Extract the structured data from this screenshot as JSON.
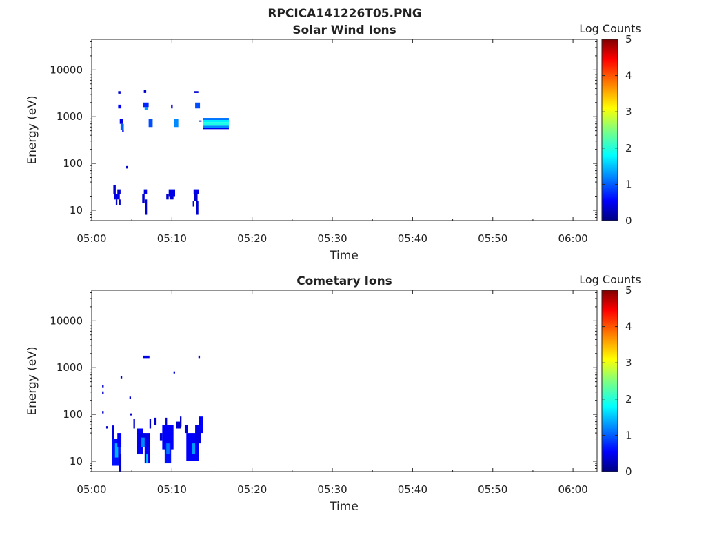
{
  "page_title": "RPCICA141226T05.PNG",
  "chart_data": [
    {
      "type": "heatmap",
      "title": "Solar Wind Ions",
      "xlabel": "Time",
      "ylabel": "Energy (eV)",
      "x_ticks": [
        "05:00",
        "05:10",
        "05:20",
        "05:30",
        "05:40",
        "05:50",
        "06:00"
      ],
      "xlim_minutes": [
        0,
        63
      ],
      "y_ticks": [
        "10",
        "100",
        "1000",
        "10000"
      ],
      "y_tick_values": [
        10,
        100,
        1000,
        10000
      ],
      "ylim": [
        6,
        45000
      ],
      "y_scale": "log",
      "colorbar_label": "Log Counts",
      "colorbar_ticks": [
        "0",
        "1",
        "2",
        "3",
        "4",
        "5"
      ],
      "colorbar_range": [
        0,
        5
      ],
      "colormap": "jet",
      "cells": [
        {
          "t0": 3.3,
          "t1": 3.6,
          "e0": 3100,
          "e1": 3500,
          "v": 0.4
        },
        {
          "t0": 3.3,
          "t1": 3.7,
          "e0": 1500,
          "e1": 1800,
          "v": 0.6
        },
        {
          "t0": 3.5,
          "t1": 3.9,
          "e0": 700,
          "e1": 900,
          "v": 0.5
        },
        {
          "t0": 3.6,
          "t1": 4.0,
          "e0": 520,
          "e1": 700,
          "v": 1.1
        },
        {
          "t0": 3.8,
          "t1": 4.0,
          "e0": 470,
          "e1": 520,
          "v": 0.5
        },
        {
          "t0": 4.3,
          "t1": 4.5,
          "e0": 78,
          "e1": 88,
          "v": 0.4
        },
        {
          "t0": 6.5,
          "t1": 6.8,
          "e0": 3200,
          "e1": 3700,
          "v": 0.4
        },
        {
          "t0": 6.4,
          "t1": 7.1,
          "e0": 1600,
          "e1": 2000,
          "v": 0.8
        },
        {
          "t0": 6.6,
          "t1": 7.0,
          "e0": 1400,
          "e1": 1600,
          "v": 1.4
        },
        {
          "t0": 7.1,
          "t1": 7.6,
          "e0": 600,
          "e1": 900,
          "v": 1.0
        },
        {
          "t0": 9.9,
          "t1": 10.1,
          "e0": 1500,
          "e1": 1800,
          "v": 0.4
        },
        {
          "t0": 10.3,
          "t1": 10.8,
          "e0": 600,
          "e1": 900,
          "v": 1.3
        },
        {
          "t0": 12.8,
          "t1": 13.3,
          "e0": 3200,
          "e1": 3500,
          "v": 0.4
        },
        {
          "t0": 12.9,
          "t1": 13.5,
          "e0": 1500,
          "e1": 2000,
          "v": 1.0
        },
        {
          "t0": 13.4,
          "t1": 13.7,
          "e0": 780,
          "e1": 830,
          "v": 0.4
        },
        {
          "t0": 13.9,
          "t1": 17.1,
          "e0": 850,
          "e1": 940,
          "v": 1.2
        },
        {
          "t0": 13.9,
          "t1": 17.1,
          "e0": 760,
          "e1": 850,
          "v": 1.8
        },
        {
          "t0": 13.9,
          "t1": 17.1,
          "e0": 640,
          "e1": 760,
          "v": 2.0
        },
        {
          "t0": 13.9,
          "t1": 17.1,
          "e0": 570,
          "e1": 640,
          "v": 1.3
        },
        {
          "t0": 13.9,
          "t1": 17.1,
          "e0": 540,
          "e1": 570,
          "v": 0.5
        },
        {
          "t0": 2.7,
          "t1": 3.0,
          "e0": 22,
          "e1": 34,
          "v": 0.4
        },
        {
          "t0": 2.8,
          "t1": 3.5,
          "e0": 17,
          "e1": 22,
          "v": 0.5
        },
        {
          "t0": 3.2,
          "t1": 3.6,
          "e0": 22,
          "e1": 28,
          "v": 0.4
        },
        {
          "t0": 3.0,
          "t1": 3.2,
          "e0": 13,
          "e1": 17,
          "v": 0.4
        },
        {
          "t0": 3.4,
          "t1": 3.6,
          "e0": 13,
          "e1": 17,
          "v": 0.4
        },
        {
          "t0": 6.5,
          "t1": 6.9,
          "e0": 22,
          "e1": 28,
          "v": 0.5
        },
        {
          "t0": 6.3,
          "t1": 6.6,
          "e0": 14,
          "e1": 22,
          "v": 0.4
        },
        {
          "t0": 6.7,
          "t1": 6.9,
          "e0": 8,
          "e1": 17,
          "v": 0.4
        },
        {
          "t0": 9.3,
          "t1": 9.6,
          "e0": 17,
          "e1": 22,
          "v": 0.4
        },
        {
          "t0": 9.6,
          "t1": 10.4,
          "e0": 20,
          "e1": 28,
          "v": 0.5
        },
        {
          "t0": 9.7,
          "t1": 10.2,
          "e0": 17,
          "e1": 20,
          "v": 0.4
        },
        {
          "t0": 12.7,
          "t1": 13.4,
          "e0": 22,
          "e1": 28,
          "v": 0.5
        },
        {
          "t0": 12.8,
          "t1": 13.2,
          "e0": 16,
          "e1": 22,
          "v": 0.4
        },
        {
          "t0": 12.6,
          "t1": 12.8,
          "e0": 12,
          "e1": 16,
          "v": 0.4
        },
        {
          "t0": 13.0,
          "t1": 13.3,
          "e0": 8,
          "e1": 16,
          "v": 0.4
        }
      ]
    },
    {
      "type": "heatmap",
      "title": "Cometary Ions",
      "xlabel": "Time",
      "ylabel": "Energy (eV)",
      "x_ticks": [
        "05:00",
        "05:10",
        "05:20",
        "05:30",
        "05:40",
        "05:50",
        "06:00"
      ],
      "xlim_minutes": [
        0,
        63
      ],
      "y_ticks": [
        "10",
        "100",
        "1000",
        "10000"
      ],
      "y_tick_values": [
        10,
        100,
        1000,
        10000
      ],
      "ylim": [
        6,
        45000
      ],
      "y_scale": "log",
      "colorbar_label": "Log Counts",
      "colorbar_ticks": [
        "0",
        "1",
        "2",
        "3",
        "4",
        "5"
      ],
      "colorbar_range": [
        0,
        5
      ],
      "colormap": "jet",
      "cells": [
        {
          "t0": 1.3,
          "t1": 1.5,
          "e0": 380,
          "e1": 430,
          "v": 0.4
        },
        {
          "t0": 1.3,
          "t1": 1.5,
          "e0": 270,
          "e1": 310,
          "v": 0.4
        },
        {
          "t0": 1.3,
          "t1": 1.5,
          "e0": 105,
          "e1": 118,
          "v": 0.4
        },
        {
          "t0": 1.8,
          "t1": 2.0,
          "e0": 50,
          "e1": 56,
          "v": 0.4
        },
        {
          "t0": 3.6,
          "t1": 3.8,
          "e0": 590,
          "e1": 650,
          "v": 0.4
        },
        {
          "t0": 4.7,
          "t1": 4.9,
          "e0": 215,
          "e1": 240,
          "v": 0.4
        },
        {
          "t0": 4.8,
          "t1": 5.0,
          "e0": 95,
          "e1": 105,
          "v": 0.4
        },
        {
          "t0": 2.5,
          "t1": 2.8,
          "e0": 30,
          "e1": 58,
          "v": 0.5
        },
        {
          "t0": 2.5,
          "t1": 3.6,
          "e0": 8,
          "e1": 30,
          "v": 0.7
        },
        {
          "t0": 2.9,
          "t1": 3.3,
          "e0": 12,
          "e1": 24,
          "v": 1.5
        },
        {
          "t0": 3.2,
          "t1": 3.7,
          "e0": 20,
          "e1": 40,
          "v": 0.6
        },
        {
          "t0": 3.4,
          "t1": 3.7,
          "e0": 6,
          "e1": 14,
          "v": 0.4
        },
        {
          "t0": 5.2,
          "t1": 5.4,
          "e0": 50,
          "e1": 80,
          "v": 0.4
        },
        {
          "t0": 5.6,
          "t1": 6.4,
          "e0": 14,
          "e1": 50,
          "v": 0.6
        },
        {
          "t0": 5.8,
          "t1": 7.3,
          "e0": 20,
          "e1": 40,
          "v": 0.5
        },
        {
          "t0": 6.2,
          "t1": 6.6,
          "e0": 20,
          "e1": 32,
          "v": 1.3
        },
        {
          "t0": 6.6,
          "t1": 7.3,
          "e0": 9,
          "e1": 20,
          "v": 0.6
        },
        {
          "t0": 6.8,
          "t1": 7.0,
          "e0": 9,
          "e1": 14,
          "v": 1.6
        },
        {
          "t0": 6.4,
          "t1": 7.2,
          "e0": 1600,
          "e1": 1800,
          "v": 0.5
        },
        {
          "t0": 7.2,
          "t1": 7.4,
          "e0": 50,
          "e1": 80,
          "v": 0.4
        },
        {
          "t0": 7.8,
          "t1": 8.0,
          "e0": 60,
          "e1": 85,
          "v": 0.4
        },
        {
          "t0": 8.5,
          "t1": 8.8,
          "e0": 28,
          "e1": 40,
          "v": 0.4
        },
        {
          "t0": 8.8,
          "t1": 10.2,
          "e0": 18,
          "e1": 60,
          "v": 0.6
        },
        {
          "t0": 9.1,
          "t1": 9.9,
          "e0": 9,
          "e1": 24,
          "v": 0.7
        },
        {
          "t0": 9.3,
          "t1": 9.7,
          "e0": 14,
          "e1": 24,
          "v": 1.2
        },
        {
          "t0": 9.2,
          "t1": 9.4,
          "e0": 60,
          "e1": 85,
          "v": 0.4
        },
        {
          "t0": 10.2,
          "t1": 10.4,
          "e0": 750,
          "e1": 830,
          "v": 0.4
        },
        {
          "t0": 10.5,
          "t1": 11.1,
          "e0": 50,
          "e1": 70,
          "v": 0.4
        },
        {
          "t0": 11.0,
          "t1": 11.2,
          "e0": 55,
          "e1": 90,
          "v": 0.4
        },
        {
          "t0": 11.6,
          "t1": 12.0,
          "e0": 40,
          "e1": 60,
          "v": 0.4
        },
        {
          "t0": 11.8,
          "t1": 13.4,
          "e0": 10,
          "e1": 40,
          "v": 0.6
        },
        {
          "t0": 12.5,
          "t1": 12.9,
          "e0": 14,
          "e1": 24,
          "v": 1.4
        },
        {
          "t0": 12.9,
          "t1": 13.6,
          "e0": 24,
          "e1": 60,
          "v": 0.5
        },
        {
          "t0": 13.4,
          "t1": 13.9,
          "e0": 40,
          "e1": 90,
          "v": 0.6
        },
        {
          "t0": 13.3,
          "t1": 13.5,
          "e0": 1600,
          "e1": 1800,
          "v": 0.4
        }
      ]
    }
  ]
}
